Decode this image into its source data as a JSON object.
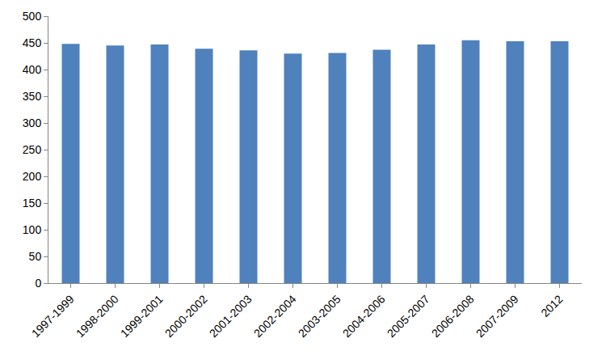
{
  "chart_data": {
    "type": "bar",
    "categories": [
      "1997-1999",
      "1998-2000",
      "1999-2001",
      "2000-2002",
      "2001-2003",
      "2002-2004",
      "2003-2005",
      "2004-2006",
      "2005-2007",
      "2006-2008",
      "2007-2009",
      "2012"
    ],
    "values": [
      448,
      445,
      447,
      439,
      436,
      430,
      431,
      437,
      447,
      455,
      453,
      453
    ],
    "color": "#4f81bd",
    "ylim": [
      0,
      500
    ],
    "yticks": [
      0,
      50,
      100,
      150,
      200,
      250,
      300,
      350,
      400,
      450,
      500
    ],
    "grid": false
  }
}
